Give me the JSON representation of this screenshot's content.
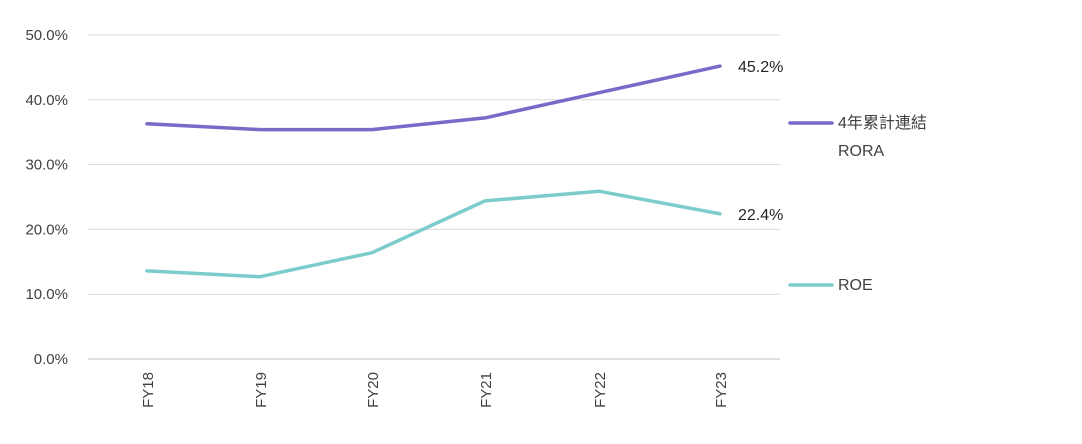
{
  "chart_data": {
    "type": "line",
    "categories": [
      "FY18",
      "FY19",
      "FY20",
      "FY21",
      "FY22",
      "FY23"
    ],
    "ylim": [
      0,
      50
    ],
    "y_ticks": [
      "0.0%",
      "10.0%",
      "20.0%",
      "30.0%",
      "40.0%",
      "50.0%"
    ],
    "grid": true,
    "legend_position": "right",
    "series": [
      {
        "name": "4年累計連結 RORA",
        "legend_lines": [
          "4年累計連結",
          "RORA"
        ],
        "color": "#7b68c8",
        "values": [
          36.3,
          35.4,
          35.4,
          37.2,
          41.1,
          45.2
        ],
        "end_label": "45.2%"
      },
      {
        "name": "ROE",
        "legend_lines": [
          "ROE"
        ],
        "color": "#7dcccc",
        "values": [
          13.6,
          12.7,
          16.4,
          24.4,
          25.9,
          22.4
        ],
        "end_label": "22.4%"
      }
    ]
  }
}
